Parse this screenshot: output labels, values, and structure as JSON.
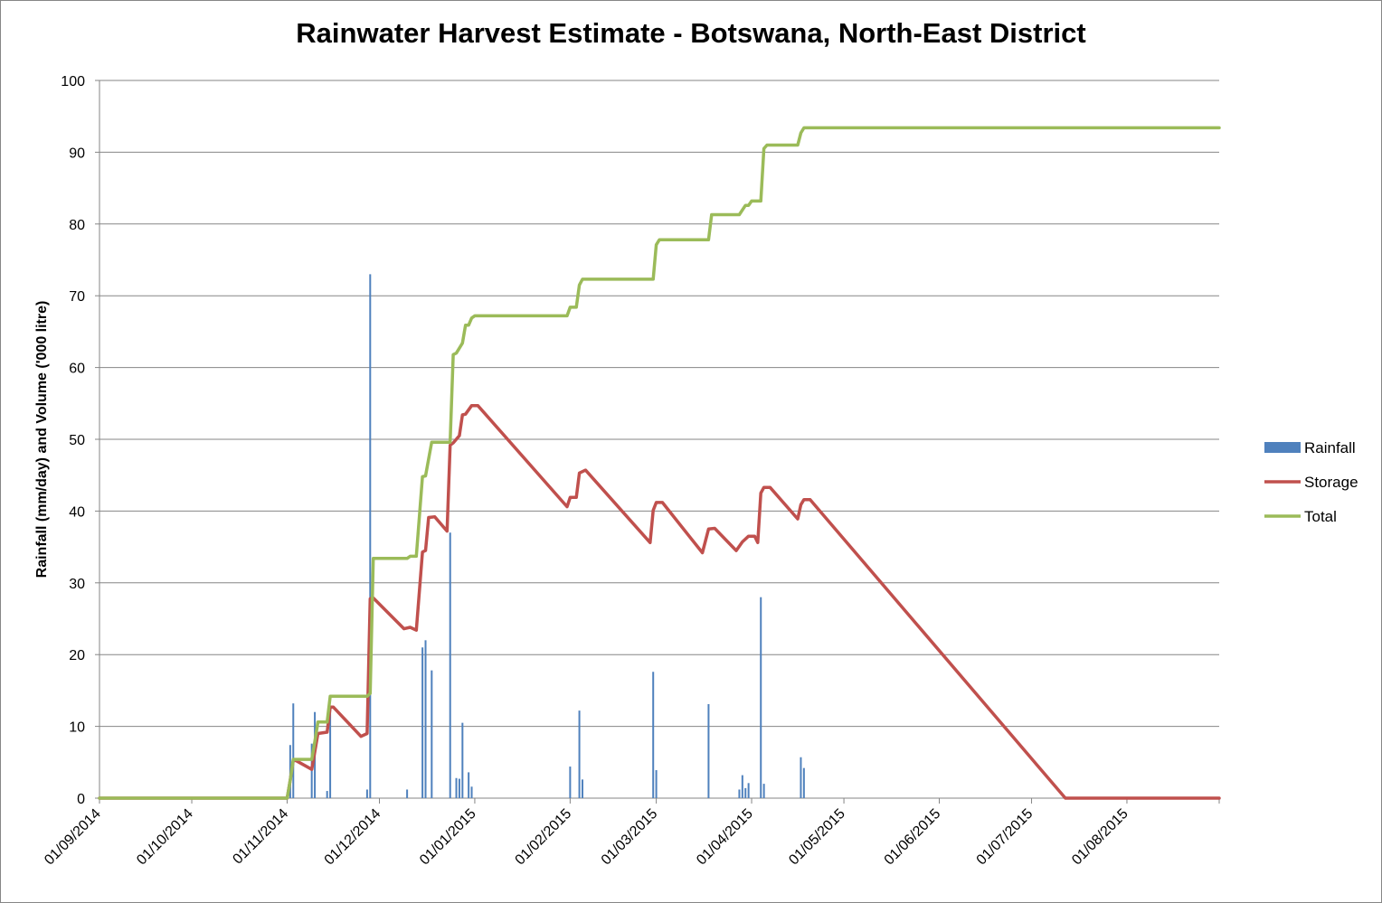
{
  "chart_data": {
    "type": "bar",
    "title": "Rainwater Harvest Estimate - Botswana, North-East District",
    "xlabel": "",
    "ylabel": "Rainfall (mm/day) and Volume ('000 litre)",
    "ylim": [
      0,
      100
    ],
    "yticks": [
      0,
      10,
      20,
      30,
      40,
      50,
      60,
      70,
      80,
      90,
      100
    ],
    "xrange": [
      "2014-09-01",
      "2015-08-31"
    ],
    "xticks": [
      "2014-09-01",
      "2014-10-01",
      "2014-11-01",
      "2014-12-01",
      "2015-01-01",
      "2015-02-01",
      "2015-03-01",
      "2015-04-01",
      "2015-05-01",
      "2015-06-01",
      "2015-07-01",
      "2015-08-01"
    ],
    "xtick_labels": [
      "01/09/2014",
      "01/10/2014",
      "01/11/2014",
      "01/12/2014",
      "01/01/2015",
      "01/02/2015",
      "01/03/2015",
      "01/04/2015",
      "01/05/2015",
      "01/06/2015",
      "01/07/2015",
      "01/08/2015"
    ],
    "grid": "horizontal",
    "legend_position": "right",
    "series": [
      {
        "name": "Rainfall",
        "type": "bar",
        "color": "#4F81BD",
        "points": [
          [
            "2014-11-02",
            7.4
          ],
          [
            "2014-11-03",
            13.2
          ],
          [
            "2014-11-09",
            7.6
          ],
          [
            "2014-11-10",
            12.0
          ],
          [
            "2014-11-14",
            1.0
          ],
          [
            "2014-11-15",
            12.5
          ],
          [
            "2014-11-27",
            1.2
          ],
          [
            "2014-11-28",
            73.0
          ],
          [
            "2014-12-10",
            1.2
          ],
          [
            "2014-12-15",
            21.0
          ],
          [
            "2014-12-16",
            22.0
          ],
          [
            "2014-12-18",
            17.8
          ],
          [
            "2014-12-24",
            37.0
          ],
          [
            "2014-12-26",
            2.8
          ],
          [
            "2014-12-27",
            2.7
          ],
          [
            "2014-12-28",
            10.5
          ],
          [
            "2014-12-30",
            3.6
          ],
          [
            "2014-12-31",
            1.6
          ],
          [
            "2015-02-01",
            4.4
          ],
          [
            "2015-02-04",
            12.2
          ],
          [
            "2015-02-05",
            2.6
          ],
          [
            "2015-02-28",
            17.6
          ],
          [
            "2015-03-01",
            3.9
          ],
          [
            "2015-03-18",
            13.1
          ],
          [
            "2015-03-28",
            1.2
          ],
          [
            "2015-03-29",
            3.2
          ],
          [
            "2015-03-30",
            1.4
          ],
          [
            "2015-03-31",
            2.1
          ],
          [
            "2015-04-04",
            28.0
          ],
          [
            "2015-04-05",
            2.0
          ],
          [
            "2015-04-17",
            5.7
          ],
          [
            "2015-04-18",
            4.2
          ]
        ]
      },
      {
        "name": "Storage",
        "type": "line",
        "color": "#C0504D",
        "points": [
          [
            "2014-09-01",
            0
          ],
          [
            "2014-11-01",
            0
          ],
          [
            "2014-11-02",
            2.5
          ],
          [
            "2014-11-03",
            5.3
          ],
          [
            "2014-11-04",
            5.2
          ],
          [
            "2014-11-09",
            4.0
          ],
          [
            "2014-11-10",
            6.5
          ],
          [
            "2014-11-11",
            9.0
          ],
          [
            "2014-11-14",
            9.2
          ],
          [
            "2014-11-15",
            12.7
          ],
          [
            "2014-11-16",
            12.7
          ],
          [
            "2014-11-25",
            8.6
          ],
          [
            "2014-11-27",
            9.0
          ],
          [
            "2014-11-28",
            27.8
          ],
          [
            "2014-11-29",
            27.9
          ],
          [
            "2014-12-09",
            23.6
          ],
          [
            "2014-12-11",
            23.8
          ],
          [
            "2014-12-13",
            23.4
          ],
          [
            "2014-12-15",
            34.3
          ],
          [
            "2014-12-16",
            34.5
          ],
          [
            "2014-12-17",
            39.1
          ],
          [
            "2014-12-19",
            39.2
          ],
          [
            "2014-12-23",
            37.2
          ],
          [
            "2014-12-24",
            49.2
          ],
          [
            "2014-12-25",
            49.5
          ],
          [
            "2014-12-27",
            50.5
          ],
          [
            "2014-12-28",
            53.4
          ],
          [
            "2014-12-29",
            53.5
          ],
          [
            "2014-12-31",
            54.7
          ],
          [
            "2015-01-02",
            54.7
          ],
          [
            "2015-01-31",
            40.6
          ],
          [
            "2015-02-01",
            41.9
          ],
          [
            "2015-02-03",
            41.9
          ],
          [
            "2015-02-04",
            45.3
          ],
          [
            "2015-02-06",
            45.7
          ],
          [
            "2015-02-27",
            35.6
          ],
          [
            "2015-02-28",
            40.1
          ],
          [
            "2015-03-01",
            41.2
          ],
          [
            "2015-03-03",
            41.2
          ],
          [
            "2015-03-16",
            34.2
          ],
          [
            "2015-03-18",
            37.5
          ],
          [
            "2015-03-20",
            37.6
          ],
          [
            "2015-03-27",
            34.5
          ],
          [
            "2015-03-29",
            35.7
          ],
          [
            "2015-03-31",
            36.5
          ],
          [
            "2015-04-02",
            36.5
          ],
          [
            "2015-04-03",
            35.6
          ],
          [
            "2015-04-04",
            42.5
          ],
          [
            "2015-04-05",
            43.3
          ],
          [
            "2015-04-07",
            43.3
          ],
          [
            "2015-04-16",
            38.9
          ],
          [
            "2015-04-17",
            40.9
          ],
          [
            "2015-04-18",
            41.6
          ],
          [
            "2015-04-20",
            41.6
          ],
          [
            "2015-07-12",
            0
          ],
          [
            "2015-08-31",
            0
          ]
        ]
      },
      {
        "name": "Total",
        "type": "line",
        "color": "#9BBB59",
        "points": [
          [
            "2014-09-01",
            0
          ],
          [
            "2014-11-01",
            0
          ],
          [
            "2014-11-02",
            2.5
          ],
          [
            "2014-11-03",
            5.4
          ],
          [
            "2014-11-09",
            5.4
          ],
          [
            "2014-11-10",
            7.9
          ],
          [
            "2014-11-11",
            10.6
          ],
          [
            "2014-11-14",
            10.6
          ],
          [
            "2014-11-15",
            14.2
          ],
          [
            "2014-11-27",
            14.2
          ],
          [
            "2014-11-28",
            14.6
          ],
          [
            "2014-11-29",
            33.4
          ],
          [
            "2014-12-10",
            33.4
          ],
          [
            "2014-12-11",
            33.7
          ],
          [
            "2014-12-13",
            33.7
          ],
          [
            "2014-12-15",
            44.8
          ],
          [
            "2014-12-16",
            44.9
          ],
          [
            "2014-12-18",
            49.6
          ],
          [
            "2014-12-24",
            49.6
          ],
          [
            "2014-12-25",
            61.8
          ],
          [
            "2014-12-26",
            62.0
          ],
          [
            "2014-12-28",
            63.4
          ],
          [
            "2014-12-29",
            65.9
          ],
          [
            "2014-12-30",
            65.9
          ],
          [
            "2014-12-31",
            66.9
          ],
          [
            "2015-01-01",
            67.2
          ],
          [
            "2015-01-31",
            67.2
          ],
          [
            "2015-02-01",
            68.4
          ],
          [
            "2015-02-03",
            68.4
          ],
          [
            "2015-02-04",
            71.5
          ],
          [
            "2015-02-05",
            72.3
          ],
          [
            "2015-02-28",
            72.3
          ],
          [
            "2015-03-01",
            77.1
          ],
          [
            "2015-03-02",
            77.8
          ],
          [
            "2015-03-18",
            77.8
          ],
          [
            "2015-03-19",
            81.3
          ],
          [
            "2015-03-28",
            81.3
          ],
          [
            "2015-03-30",
            82.6
          ],
          [
            "2015-03-31",
            82.6
          ],
          [
            "2015-04-01",
            83.2
          ],
          [
            "2015-04-04",
            83.2
          ],
          [
            "2015-04-05",
            90.5
          ],
          [
            "2015-04-06",
            91.0
          ],
          [
            "2015-04-16",
            91.0
          ],
          [
            "2015-04-17",
            92.7
          ],
          [
            "2015-04-18",
            93.4
          ],
          [
            "2015-08-31",
            93.4
          ]
        ]
      }
    ]
  }
}
